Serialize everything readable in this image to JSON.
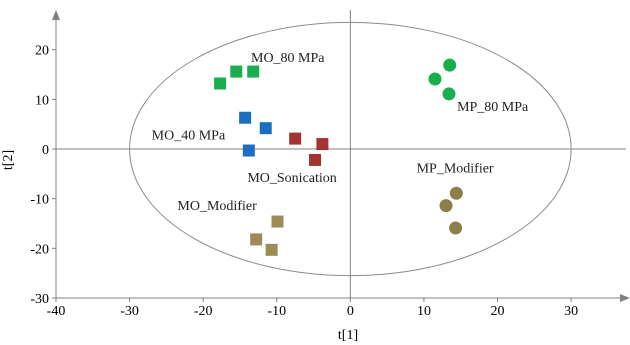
{
  "chart_data": {
    "type": "scatter",
    "title": "",
    "xlabel": "t[1]",
    "ylabel": "t[2]",
    "xlim": [
      -40,
      38
    ],
    "ylim": [
      -30,
      28
    ],
    "xticks": [
      -40,
      -30,
      -20,
      -10,
      0,
      10,
      20,
      30
    ],
    "yticks": [
      -30,
      -20,
      -10,
      0,
      10,
      20
    ],
    "grid": false,
    "origin_lines": true,
    "confidence_ellipse": {
      "center": [
        0,
        0
      ],
      "rx": 30,
      "ry": 25.5
    },
    "colors": {
      "mo_80": "#1aae4e",
      "mo_40": "#1c6fc0",
      "mo_sonication": "#a3342f",
      "mo_modifier": "#9b8c55",
      "mp_80": "#1aae4e",
      "mp_modifier": "#8c7f4a",
      "ellipse": "#8c8c8c",
      "axis": "#808080"
    },
    "series": [
      {
        "key": "mo_80",
        "name": "MO_80 MPa",
        "marker": "square",
        "color": "#1aae4e",
        "x": [
          -17.7,
          -15.5,
          -13.2
        ],
        "y": [
          13.2,
          15.6,
          15.6
        ],
        "label_pos": [
          -13.5,
          17.5
        ]
      },
      {
        "key": "mo_40",
        "name": "MO_40 MPa",
        "marker": "square",
        "color": "#1c6fc0",
        "x": [
          -14.3,
          -11.5,
          -13.8
        ],
        "y": [
          6.3,
          4.2,
          -0.3
        ],
        "label_pos": [
          -27,
          1.9
        ]
      },
      {
        "key": "mo_sonication",
        "name": "MO_Sonication",
        "marker": "square",
        "color": "#a3342f",
        "x": [
          -7.5,
          -3.8,
          -4.8
        ],
        "y": [
          2.1,
          1.0,
          -2.2
        ],
        "label_pos": [
          -14,
          -6.6
        ]
      },
      {
        "key": "mo_modifier",
        "name": "MO_Modifier",
        "marker": "square",
        "color": "#9b8c55",
        "x": [
          -9.9,
          -12.8,
          -10.7
        ],
        "y": [
          -14.6,
          -18.2,
          -20.3
        ],
        "label_pos": [
          -23.5,
          -12.3
        ]
      },
      {
        "key": "mp_80",
        "name": "MP_80 MPa",
        "marker": "circle",
        "color": "#1aae4e",
        "x": [
          13.5,
          11.5,
          13.4
        ],
        "y": [
          16.9,
          14.1,
          11.1
        ],
        "label_pos": [
          14.5,
          7.7
        ]
      },
      {
        "key": "mp_modifier",
        "name": "MP_Modifier",
        "marker": "circle",
        "color": "#8c7f4a",
        "x": [
          14.4,
          13.0,
          14.3
        ],
        "y": [
          -8.9,
          -11.4,
          -15.9
        ],
        "label_pos": [
          9,
          -4.7
        ]
      }
    ]
  }
}
